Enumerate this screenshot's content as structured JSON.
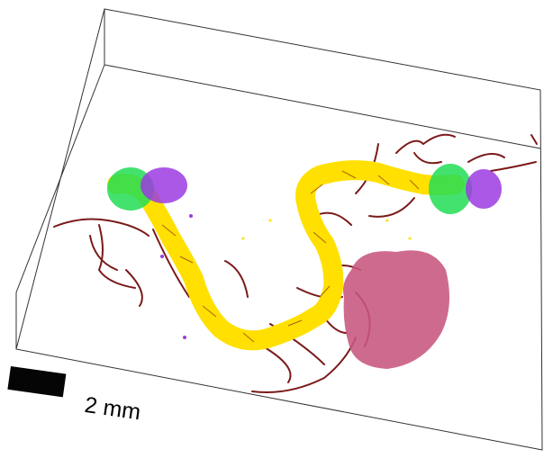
{
  "scale_bar": {
    "label": "2 mm"
  },
  "colors": {
    "background": "#ffffff",
    "box_frame": "#333333",
    "tubule": "#ffe000",
    "vessels": "#7a1a1a",
    "region_green": "#22dd55",
    "region_purple": "#9b3be0",
    "ovary_pink": "#c8557f",
    "scale_bar": "#050505"
  }
}
